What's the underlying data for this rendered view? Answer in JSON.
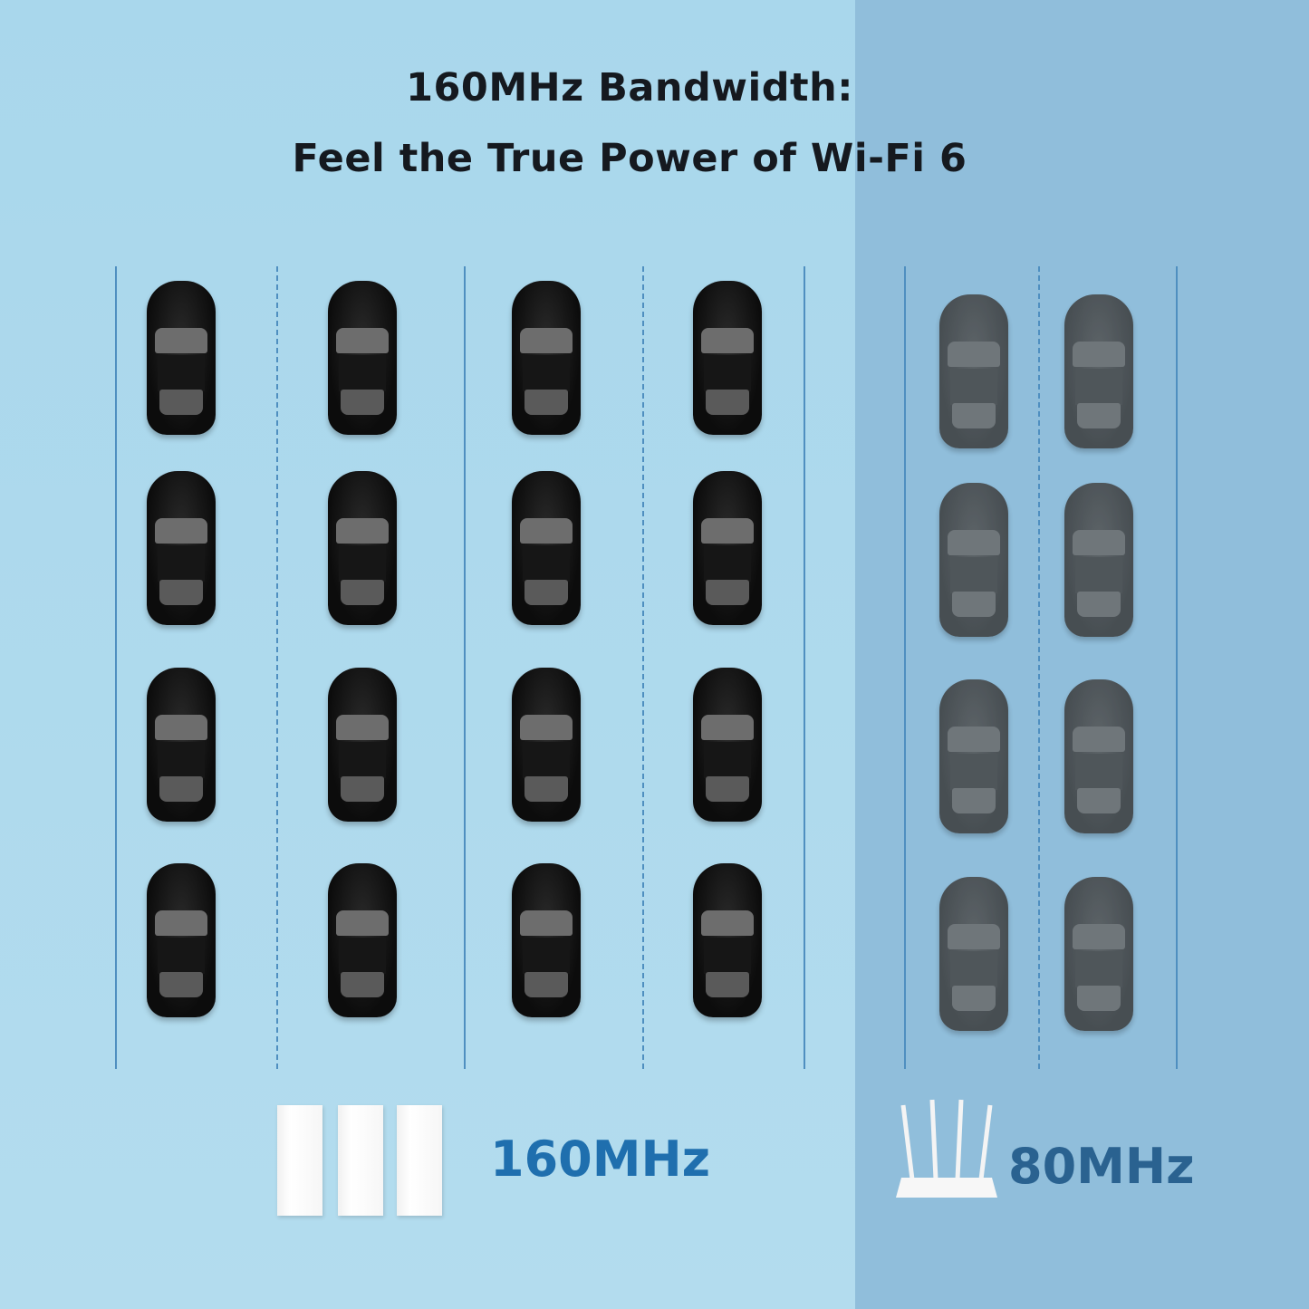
{
  "title": {
    "line1": "160MHz Bandwidth:",
    "line2": "Feel the True Power of Wi-Fi 6"
  },
  "left_panel": {
    "label": "160MHz",
    "label_color": "#1f6fae",
    "car_columns": 4,
    "car_rows": 4,
    "device": "mesh-node-icon"
  },
  "right_panel": {
    "label": "80MHz",
    "label_color": "#2a6290",
    "car_columns": 2,
    "car_rows": 4,
    "device": "router-icon"
  }
}
